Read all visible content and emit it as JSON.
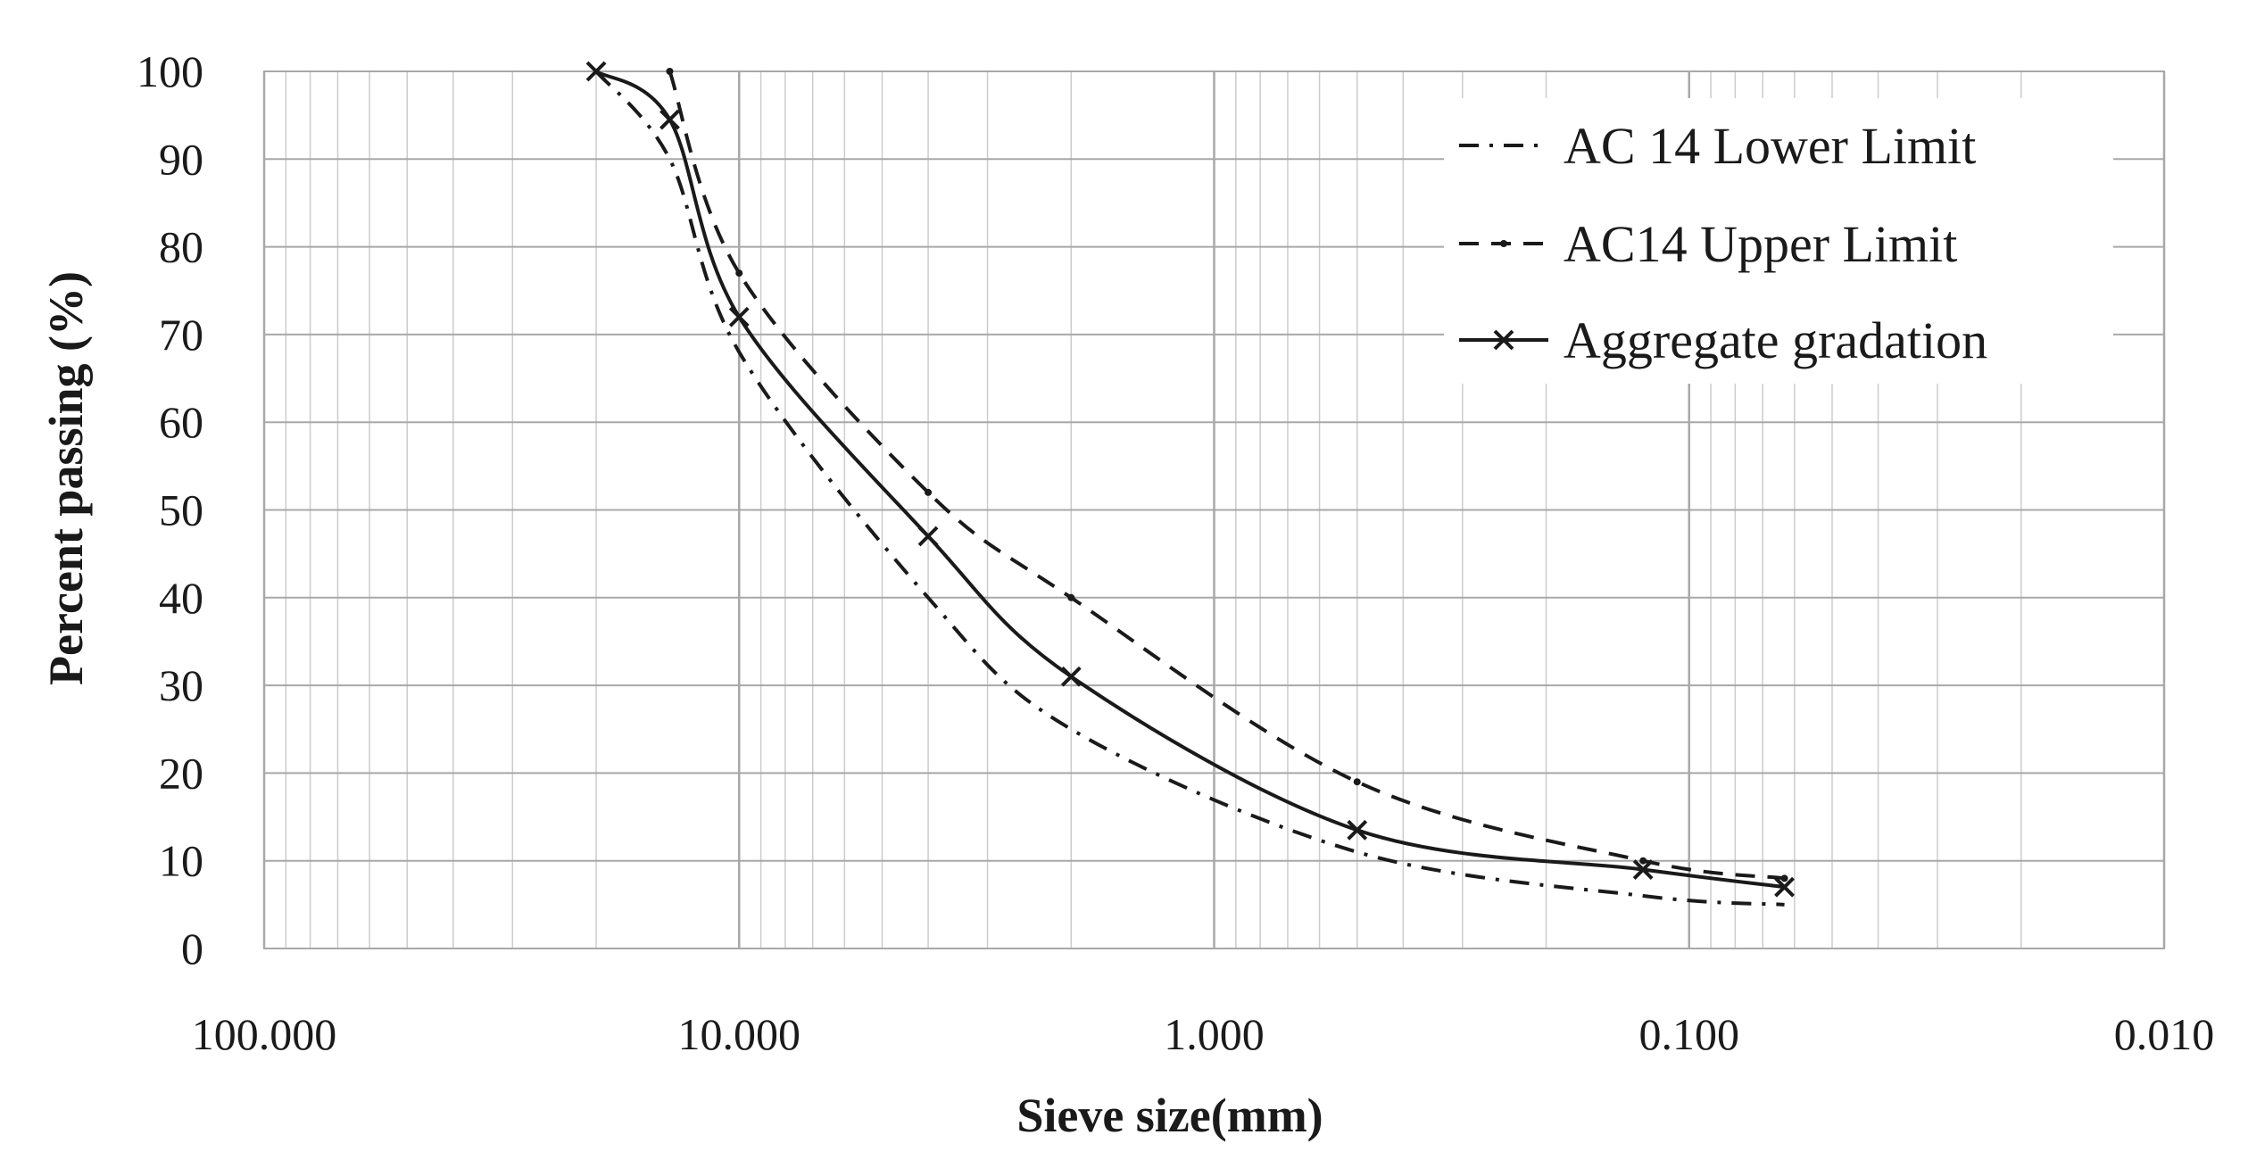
{
  "chart_data": {
    "type": "line",
    "title": "",
    "xlabel": "Sieve size(mm)",
    "ylabel": "Percent passing (%)",
    "x_scale": "log",
    "x_reversed": true,
    "xlim": [
      100,
      0.01
    ],
    "ylim": [
      0,
      100
    ],
    "x_tick_values": [
      100,
      10,
      1,
      0.1,
      0.01
    ],
    "x_tick_labels": [
      "100.000",
      "10.000",
      "1.000",
      "0.100",
      "0.010"
    ],
    "y_ticks": [
      0,
      10,
      20,
      30,
      40,
      50,
      60,
      70,
      80,
      90,
      100
    ],
    "grid": true,
    "legend_position": "top-right",
    "series": [
      {
        "name": "AC 14 Lower Limit",
        "style": "dashdot",
        "marker": "none",
        "color": "#1a1a1a",
        "x": [
          20,
          14,
          10,
          4,
          2,
          0.5,
          0.125,
          0.063
        ],
        "y": [
          100,
          90,
          68,
          40,
          25,
          11,
          6,
          5
        ]
      },
      {
        "name": "AC14 Upper Limit",
        "style": "dashed",
        "marker": "dot",
        "color": "#1a1a1a",
        "x": [
          14,
          10,
          4,
          2,
          0.5,
          0.125,
          0.063
        ],
        "y": [
          100,
          77,
          52,
          40,
          19,
          10,
          8
        ]
      },
      {
        "name": "Aggregate gradation",
        "style": "solid",
        "marker": "x",
        "color": "#1a1a1a",
        "x": [
          20,
          14,
          10,
          4,
          2,
          0.5,
          0.125,
          0.063
        ],
        "y": [
          100,
          94.5,
          72,
          47,
          31,
          13.5,
          9,
          7
        ]
      }
    ]
  }
}
